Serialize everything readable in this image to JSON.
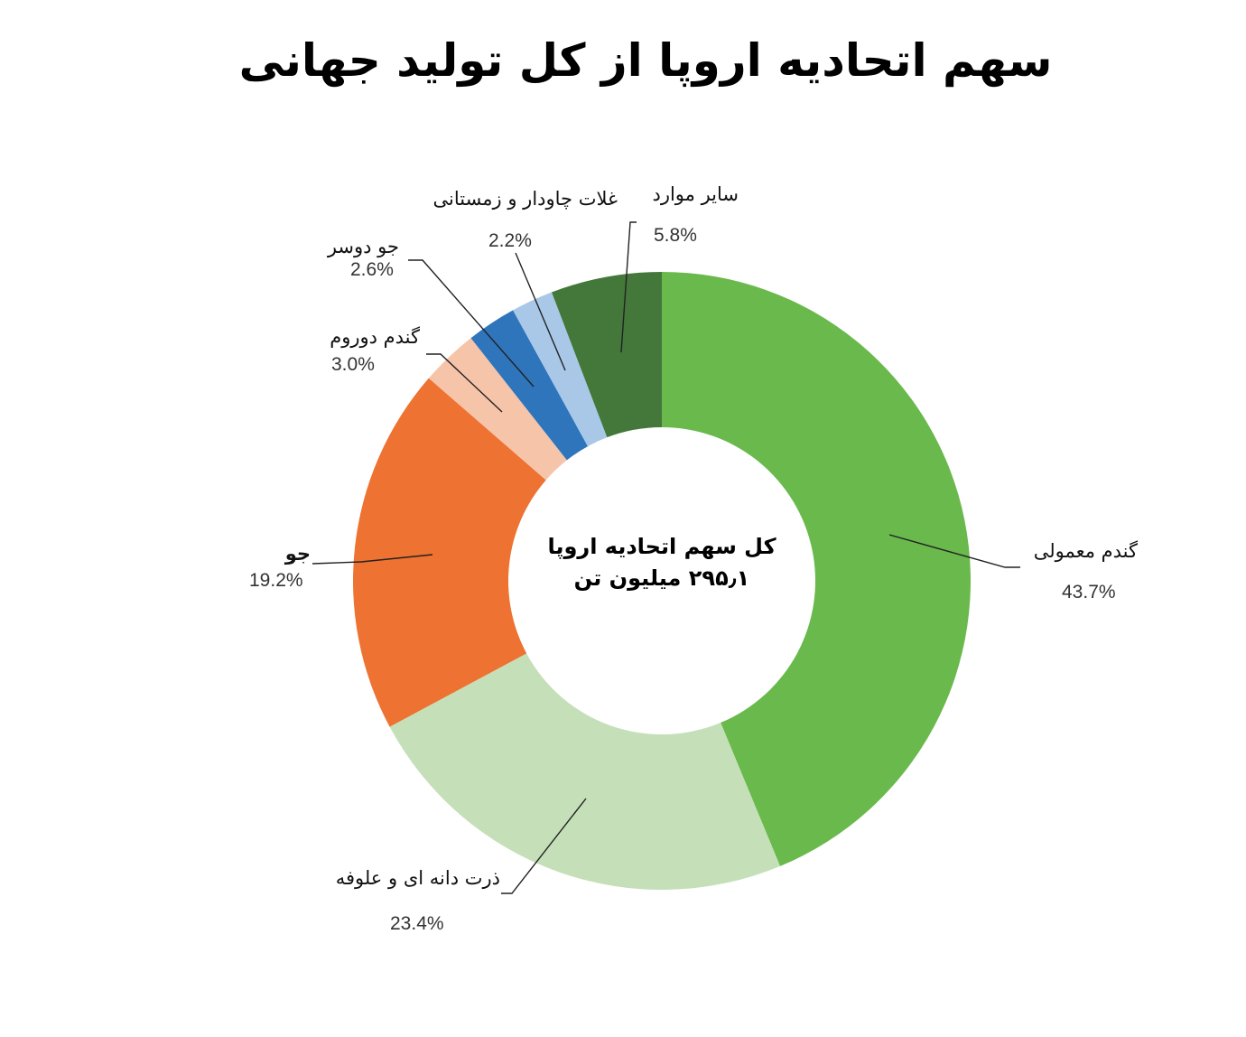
{
  "title": "سهم اتحادیه اروپا از کل تولید جهانی",
  "center": {
    "line1": "کل سهم اتحادیه اروپا",
    "line2": "۲۹۵٫۱ میلیون تن"
  },
  "labels": {
    "common_wheat": {
      "name": "گندم معمولی",
      "pct": "43.7%"
    },
    "corn": {
      "name": "ذرت دانه ای و علوفه",
      "pct": "23.4%"
    },
    "barley": {
      "name": "جو",
      "pct": "19.2%"
    },
    "durum": {
      "name": "گندم دوروم",
      "pct": "3.0%"
    },
    "two_row_barley": {
      "name": "جو دوسر",
      "pct": "2.6%"
    },
    "rye_winter": {
      "name": "غلات چاودار و زمستانی",
      "pct": "2.2%"
    },
    "other": {
      "name": "سایر موارد",
      "pct": "5.8%"
    }
  },
  "chart_data": {
    "type": "pie",
    "subtype": "donut",
    "title": "سهم اتحادیه اروپا از کل تولید جهانی",
    "center_label": "کل سهم اتحادیه اروپا ۲۹۵٫۱ میلیون تن",
    "start_angle_deg": 0,
    "direction": "clockwise",
    "categories": [
      "گندم معمولی",
      "ذرت دانه ای و علوفه",
      "جو",
      "گندم دوروم",
      "جو دوسر",
      "غلات چاودار و زمستانی",
      "سایر موارد"
    ],
    "values": [
      43.7,
      23.4,
      19.2,
      3.0,
      2.6,
      2.2,
      5.8
    ],
    "unit": "%",
    "colors": [
      "#6ab94c",
      "#c5e0b9",
      "#ee7232",
      "#f6c4a8",
      "#2e75bb",
      "#a9c8e8",
      "#43783a"
    ],
    "legend": "none (leader-line labels)"
  }
}
